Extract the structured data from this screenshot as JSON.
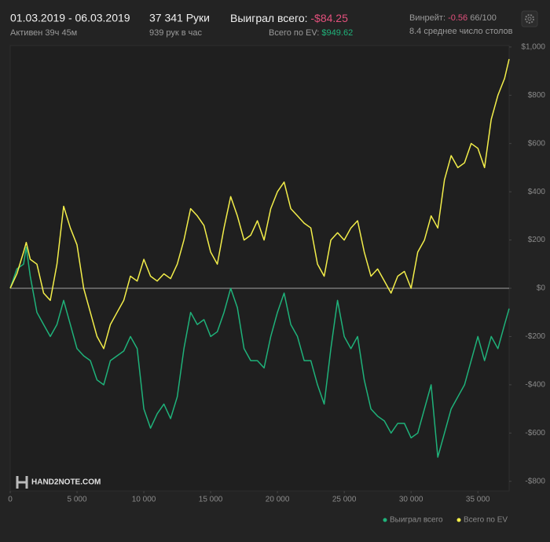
{
  "header": {
    "dates": "01.03.2019 - 06.03.2019",
    "active": "Активен 39ч 45м",
    "hands": "37 341 Руки",
    "rate": "939 рук в час",
    "won_label": "Выиграл всего:",
    "won_value": "-$84.25",
    "ev_label": "Всего по EV:",
    "ev_value": "$949.62",
    "winrate_label": "Винрейт:",
    "winrate_value": "-0.56",
    "winrate_base": "66/100",
    "tables": "8.4 среднее число столов"
  },
  "logo": "HAND2NOTE.COM",
  "chart_data": {
    "type": "line",
    "x": [
      0,
      500,
      1000,
      1200,
      1500,
      2000,
      2500,
      3000,
      3500,
      4000,
      4500,
      5000,
      5500,
      6000,
      6500,
      7000,
      7500,
      8000,
      8500,
      9000,
      9500,
      10000,
      10500,
      11000,
      11500,
      12000,
      12500,
      13000,
      13500,
      14000,
      14500,
      15000,
      15500,
      16000,
      16500,
      17000,
      17500,
      18000,
      18500,
      19000,
      19500,
      20000,
      20500,
      21000,
      21500,
      22000,
      22500,
      23000,
      23500,
      24000,
      24500,
      25000,
      25500,
      26000,
      26500,
      27000,
      27500,
      28000,
      28500,
      29000,
      29500,
      30000,
      30500,
      31000,
      31500,
      32000,
      32500,
      33000,
      33500,
      34000,
      34500,
      35000,
      35500,
      36000,
      36500,
      37000,
      37341
    ],
    "xlim": [
      0,
      37341
    ],
    "xticks": [
      0,
      {
        "value": 5000,
        "label": "5 000"
      },
      {
        "value": 10000,
        "label": "10 000"
      },
      {
        "value": 15000,
        "label": "15 000"
      },
      {
        "value": 20000,
        "label": "20 000"
      },
      {
        "value": 25000,
        "label": "25 000"
      },
      {
        "value": 30000,
        "label": "30 000"
      },
      {
        "value": 35000,
        "label": "35 000"
      }
    ],
    "ylim": [
      -840,
      1006
    ],
    "yticks": [
      {
        "value": 1000,
        "label": "$1,000"
      },
      {
        "value": 800,
        "label": "$800"
      },
      {
        "value": 600,
        "label": "$600"
      },
      {
        "value": 400,
        "label": "$400"
      },
      {
        "value": 200,
        "label": "$200"
      },
      {
        "value": 0,
        "label": "$0"
      },
      {
        "value": -200,
        "label": "-$200"
      },
      {
        "value": -400,
        "label": "-$400"
      },
      {
        "value": -600,
        "label": "-$600"
      },
      {
        "value": -800,
        "label": "-$800"
      }
    ],
    "zero_line": true,
    "series": [
      {
        "name": "Выиграл всего",
        "color": "#1fb27a",
        "values": [
          0,
          80,
          100,
          170,
          50,
          -100,
          -150,
          -200,
          -150,
          -50,
          -150,
          -250,
          -280,
          -300,
          -380,
          -400,
          -300,
          -280,
          -260,
          -200,
          -250,
          -500,
          -580,
          -520,
          -480,
          -540,
          -450,
          -250,
          -100,
          -150,
          -130,
          -200,
          -180,
          -100,
          0,
          -80,
          -250,
          -300,
          -300,
          -330,
          -200,
          -100,
          -20,
          -150,
          -200,
          -300,
          -300,
          -400,
          -480,
          -250,
          -50,
          -200,
          -250,
          -200,
          -380,
          -500,
          -530,
          -550,
          -600,
          -560,
          -560,
          -620,
          -600,
          -500,
          -400,
          -700,
          -600,
          -500,
          -450,
          -400,
          -300,
          -200,
          -300,
          -200,
          -250,
          -150,
          -84
        ]
      },
      {
        "name": "Всего по EV",
        "color": "#f3ee4a",
        "values": [
          0,
          60,
          150,
          190,
          120,
          100,
          -20,
          -50,
          100,
          340,
          250,
          180,
          0,
          -100,
          -200,
          -250,
          -150,
          -100,
          -50,
          50,
          30,
          120,
          50,
          30,
          60,
          40,
          100,
          200,
          330,
          300,
          260,
          150,
          100,
          250,
          380,
          300,
          200,
          220,
          280,
          200,
          330,
          400,
          440,
          330,
          300,
          270,
          250,
          100,
          50,
          200,
          230,
          200,
          250,
          280,
          150,
          50,
          80,
          30,
          -20,
          50,
          70,
          0,
          150,
          200,
          300,
          250,
          450,
          550,
          500,
          520,
          600,
          580,
          500,
          700,
          800,
          870,
          950
        ]
      }
    ]
  }
}
